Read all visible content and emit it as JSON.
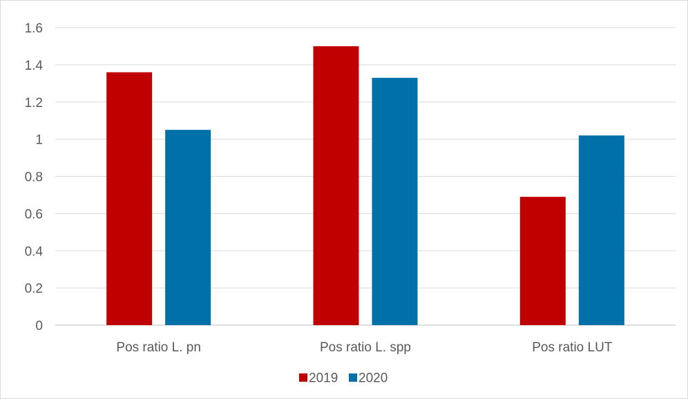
{
  "chart_data": {
    "type": "bar",
    "categories": [
      "Pos ratio L. pn",
      "Pos ratio L. spp",
      "Pos ratio LUT"
    ],
    "series": [
      {
        "name": "2019",
        "values": [
          1.36,
          1.5,
          0.69
        ],
        "color": "#c00000"
      },
      {
        "name": "2020",
        "values": [
          1.05,
          1.33,
          1.02
        ],
        "color": "#0070a8"
      }
    ],
    "ylim": [
      0,
      1.6
    ],
    "yticks": [
      "0",
      "0.2",
      "0.4",
      "0.6",
      "0.8",
      "1",
      "1.2",
      "1.4",
      "1.6"
    ],
    "title": "",
    "xlabel": "",
    "ylabel": "",
    "grid": true,
    "legend_position": "bottom-center",
    "gridline_color": "#d9d9d9",
    "axis_color": "#bfbfbf"
  }
}
